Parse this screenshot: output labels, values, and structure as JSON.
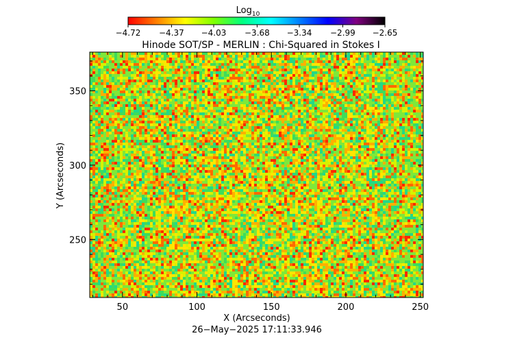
{
  "chart_data": {
    "type": "heatmap",
    "title": "Hinode SOT/SP - MERLIN : Chi-Squared in Stokes I",
    "xlabel": "X (Arcseconds)",
    "ylabel": "Y (Arcseconds)",
    "xlim": [
      28,
      252
    ],
    "ylim": [
      211,
      376
    ],
    "x_ticks": [
      {
        "value": 50,
        "label": "50"
      },
      {
        "value": 100,
        "label": "100"
      },
      {
        "value": 150,
        "label": "150"
      },
      {
        "value": 200,
        "label": "200"
      },
      {
        "value": 250,
        "label": "250"
      }
    ],
    "y_ticks": [
      {
        "value": 250,
        "label": "250"
      },
      {
        "value": 300,
        "label": "300"
      },
      {
        "value": 350,
        "label": "350"
      }
    ],
    "colorbar": {
      "title": "Log",
      "title_subscript": "10",
      "ticks": [
        {
          "value": -4.72,
          "label": "−4.72"
        },
        {
          "value": -4.37,
          "label": "−4.37"
        },
        {
          "value": -4.03,
          "label": "−4.03"
        },
        {
          "value": -3.68,
          "label": "−3.68"
        },
        {
          "value": -3.34,
          "label": "−3.34"
        },
        {
          "value": -2.99,
          "label": "−2.99"
        },
        {
          "value": -2.65,
          "label": "−2.65"
        }
      ],
      "range": [
        -4.72,
        -2.65
      ],
      "colors": [
        "#ff0000",
        "#ff8000",
        "#ffff00",
        "#80ff00",
        "#00ff80",
        "#00ffff",
        "#0080ff",
        "#0000ff",
        "#800080",
        "#000000"
      ]
    },
    "timestamp": "26−May−2025 17:11:33.946",
    "grid": false
  }
}
